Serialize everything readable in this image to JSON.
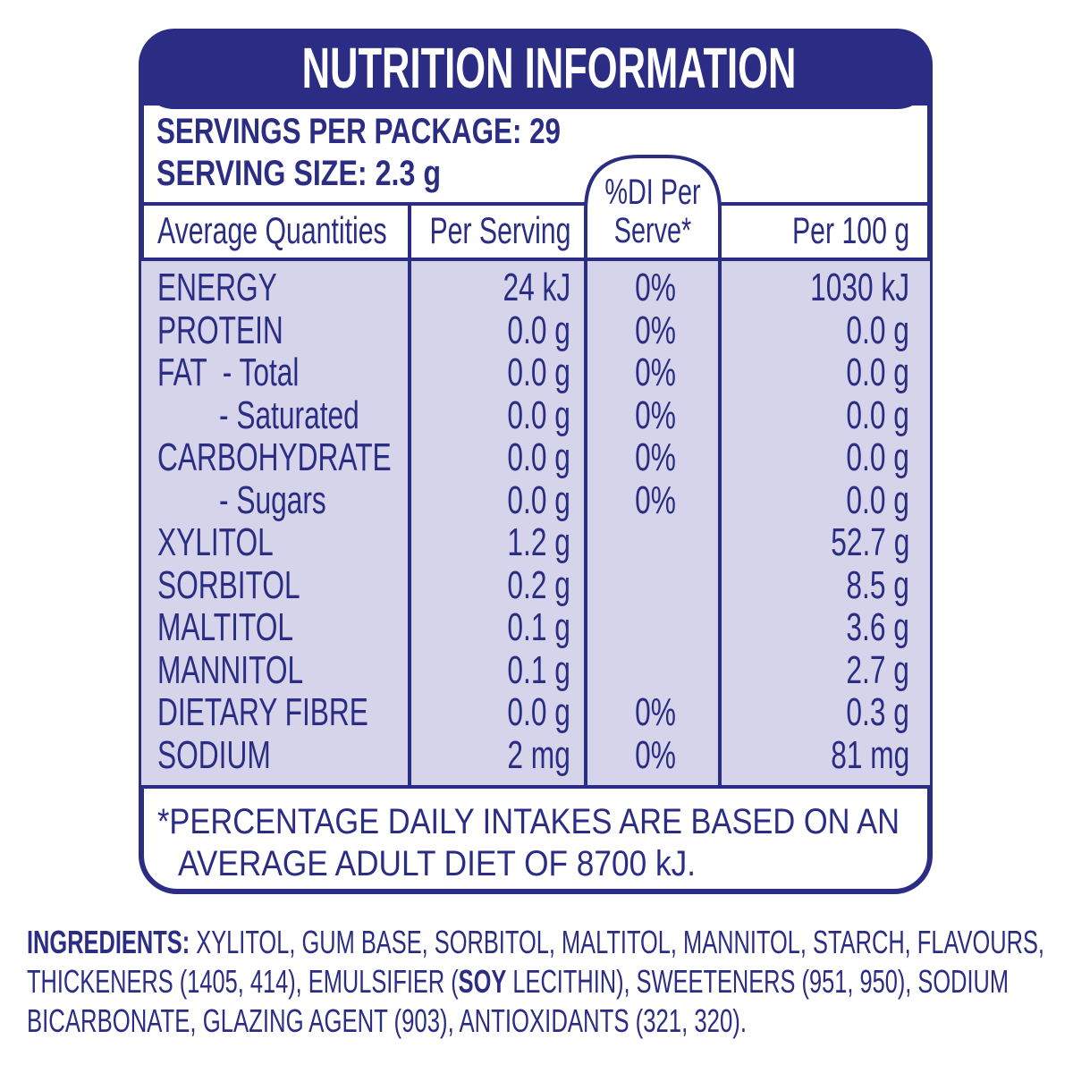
{
  "header": {
    "title": "NUTRITION INFORMATION"
  },
  "servings": [
    "SERVINGS PER PACKAGE: 29",
    "SERVING SIZE: 2.3 g"
  ],
  "table": {
    "columns": [
      "Average Quantities",
      "Per Serving",
      [
        "%DI Per",
        "Serve*"
      ],
      "Per 100 g"
    ],
    "rows": [
      {
        "name": "ENERGY",
        "per_serving": "24 kJ",
        "di": "0%",
        "per_100g": "1030 kJ"
      },
      {
        "name": "PROTEIN",
        "per_serving": "0.0 g",
        "di": "0%",
        "per_100g": "0.0 g"
      },
      {
        "name": "FAT  - Total",
        "per_serving": "0.0 g",
        "di": "0%",
        "per_100g": "0.0 g"
      },
      {
        "name": "- Saturated",
        "per_serving": "0.0 g",
        "di": "0%",
        "per_100g": "0.0 g"
      },
      {
        "name": "CARBOHYDRATE",
        "per_serving": "0.0 g",
        "di": "0%",
        "per_100g": "0.0 g"
      },
      {
        "name": "- Sugars",
        "per_serving": "0.0 g",
        "di": "0%",
        "per_100g": "0.0 g"
      },
      {
        "name": "XYLITOL",
        "per_serving": "1.2 g",
        "per_100g": "52.7 g"
      },
      {
        "name": "SORBITOL",
        "per_serving": "0.2 g",
        "per_100g": "8.5 g"
      },
      {
        "name": "MALTITOL",
        "per_serving": "0.1 g",
        "per_100g": "3.6 g"
      },
      {
        "name": "MANNITOL",
        "per_serving": "0.1 g",
        "per_100g": "2.7 g"
      },
      {
        "name": "DIETARY FIBRE",
        "per_serving": "0.0 g",
        "di": "0%",
        "per_100g": "0.3 g"
      },
      {
        "name": "SODIUM",
        "per_serving": "2 mg",
        "di": "0%",
        "per_100g": "81 mg"
      }
    ]
  },
  "footnote": [
    "*PERCENTAGE DAILY INTAKES ARE BASED ON AN",
    "AVERAGE ADULT DIET OF 8700 kJ."
  ],
  "ingredients": [
    [
      {
        "text": "INGREDIENTS:",
        "bold": true
      },
      {
        "text": " XYLITOL, GUM BASE, SORBITOL, MALTITOL, MANNITOL, STARCH, FLAVOURS,"
      }
    ],
    [
      {
        "text": "THICKENERS (1405, 414), EMULSIFIER ("
      },
      {
        "text": "SOY",
        "bold": true
      },
      {
        "text": " LECITHIN), SWEETENERS (951, 950), SODIUM"
      }
    ],
    [
      {
        "text": "BICARBONATE, GLAZING AGENT (903), ANTIOXIDANTS (321, 320)."
      }
    ]
  ]
}
